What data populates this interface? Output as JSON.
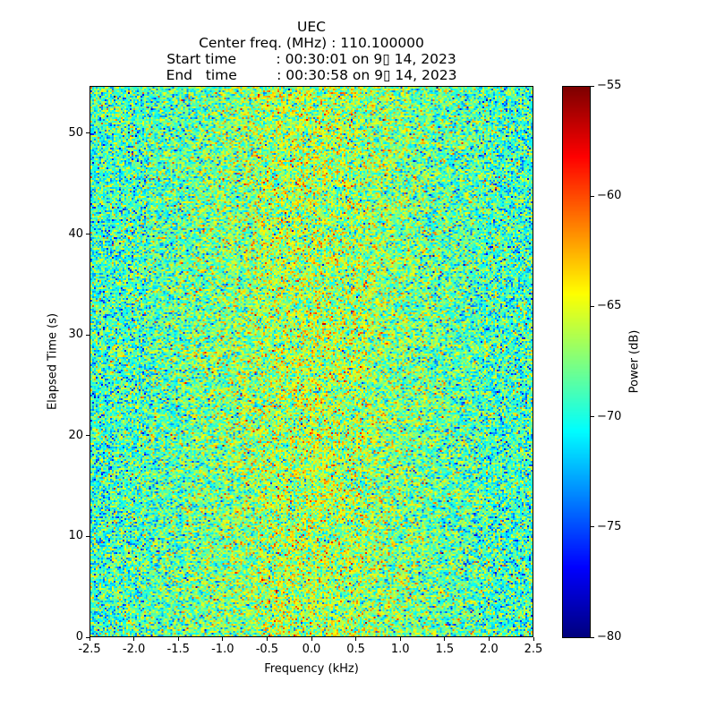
{
  "chart_data": {
    "type": "heatmap",
    "title_lines": [
      "UEC",
      "Center freq. (MHz) : 110.100000",
      "Start time         : 00:30:01 on 9▯ 14, 2023",
      "End   time         : 00:30:58 on 9▯ 14, 2023"
    ],
    "xlabel": "Frequency (kHz)",
    "ylabel": "Elapsed Time (s)",
    "xlim": [
      -2.5,
      2.5
    ],
    "ylim": [
      0,
      54.7
    ],
    "xticks": [
      "-2.5",
      "-2.0",
      "-1.5",
      "-1.0",
      "-0.5",
      "0.0",
      "0.5",
      "1.0",
      "1.5",
      "2.0",
      "2.5"
    ],
    "xtick_values": [
      -2.5,
      -2.0,
      -1.5,
      -1.0,
      -0.5,
      0.0,
      0.5,
      1.0,
      1.5,
      2.0,
      2.5
    ],
    "yticks": [
      "0",
      "10",
      "20",
      "30",
      "40",
      "50"
    ],
    "ytick_values": [
      0,
      10,
      20,
      30,
      40,
      50
    ],
    "colorbar": {
      "label": "Power (dB)",
      "range": [
        -80,
        -55
      ],
      "ticks": [
        "−80",
        "−75",
        "−70",
        "−65",
        "−60",
        "−55"
      ],
      "tick_values": [
        -80,
        -75,
        -70,
        -65,
        -60,
        -55
      ],
      "colormap": "jet"
    },
    "values_summary": {
      "description": "random noise spectrogram",
      "mean_center_db": -66.5,
      "mean_edge_db": -69.5,
      "std_db": 3.0,
      "n_freq_bins": 248,
      "n_time_bins": 307
    }
  }
}
